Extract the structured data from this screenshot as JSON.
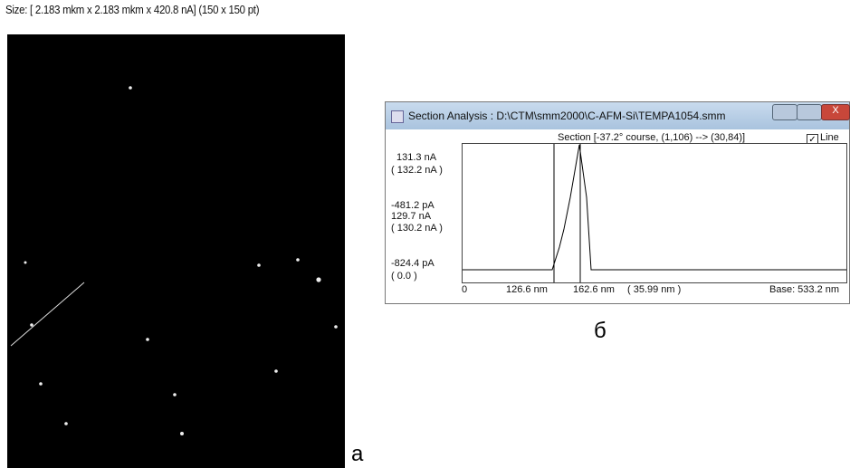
{
  "image_panel": {
    "size_caption": "Size: [ 2.183 mkm x  2.183 mkm x  420.8 nA] (150 x 150 pt)",
    "panel_label": "а"
  },
  "section_window": {
    "title": "Section Analysis : D:\\CTM\\smm2000\\C-AFM-Si\\TEMPA1054.smm",
    "section_caption": "Section [-37.2° course,  (1,106) --> (30,84)]",
    "line_checkbox": "Line",
    "left_labels": [
      "131.3 nA",
      "( 132.2 nA )",
      "-481.2 pA",
      "129.7 nA",
      "( 130.2 nA )",
      "-824.4 pA",
      "( 0.0 )"
    ],
    "bottom_labels": [
      "0",
      "126.6 nm",
      "162.6 nm",
      "( 35.99 nm )",
      "Base:  533.2 nm"
    ],
    "panel_label": "б"
  }
}
